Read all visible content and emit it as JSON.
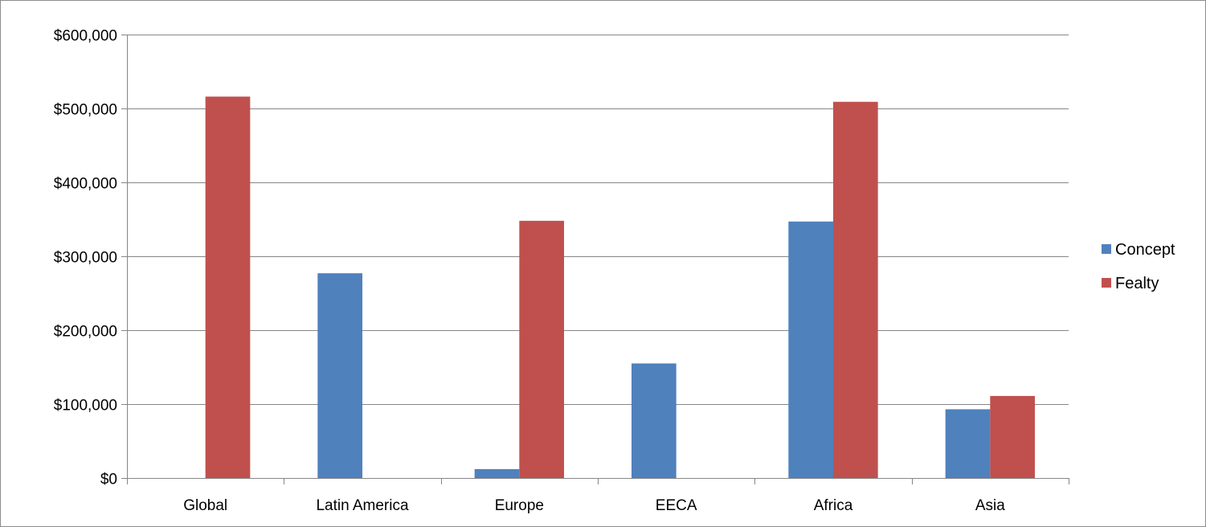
{
  "colors": {
    "concept": "#4f81bd",
    "fealty": "#c0504d",
    "gridline": "#868686",
    "axis": "#868686"
  },
  "chart_data": {
    "type": "bar",
    "title": "",
    "xlabel": "",
    "ylabel": "",
    "categories": [
      "Global",
      "Latin America",
      "Europe",
      "EECA",
      "Africa",
      "Asia"
    ],
    "series": [
      {
        "name": "Concept",
        "values": [
          0,
          277000,
          12000,
          155000,
          347000,
          93000
        ]
      },
      {
        "name": "Fealty",
        "values": [
          516000,
          0,
          348000,
          0,
          509000,
          111000
        ]
      }
    ],
    "ylim": [
      0,
      600000
    ],
    "yticks": [
      0,
      100000,
      200000,
      300000,
      400000,
      500000,
      600000
    ],
    "ytick_labels": [
      "$0",
      "$100,000",
      "$200,000",
      "$300,000",
      "$400,000",
      "$500,000",
      "$600,000"
    ],
    "grid": true,
    "legend_position": "right"
  }
}
